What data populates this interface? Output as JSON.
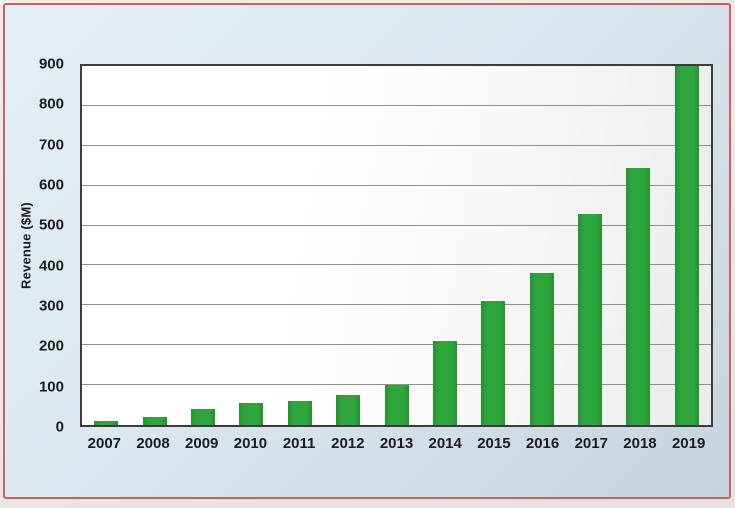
{
  "chart_data": {
    "type": "bar",
    "title": "",
    "xlabel": "",
    "ylabel": "Revenue ($M)",
    "categories": [
      "2007",
      "2008",
      "2009",
      "2010",
      "2011",
      "2012",
      "2013",
      "2014",
      "2015",
      "2016",
      "2017",
      "2018",
      "2019"
    ],
    "values": [
      10,
      20,
      40,
      55,
      60,
      75,
      100,
      210,
      310,
      380,
      530,
      645,
      900
    ],
    "ylim": [
      0,
      900
    ],
    "y_ticks": [
      0,
      100,
      200,
      300,
      400,
      500,
      600,
      700,
      800,
      900
    ],
    "grid": true,
    "legend": "none",
    "bar_color": "#2ea63d",
    "bar_color_dark": "#249231"
  },
  "colors": {
    "panel_border": "#c96360",
    "panel_background_light": "#e5eef4",
    "panel_background_dark": "#c6d4de",
    "plot_background": "#ffffff",
    "grid_line": "#8f8f8f",
    "frame": "#3c3c3c",
    "text": "#1b1b1b"
  }
}
